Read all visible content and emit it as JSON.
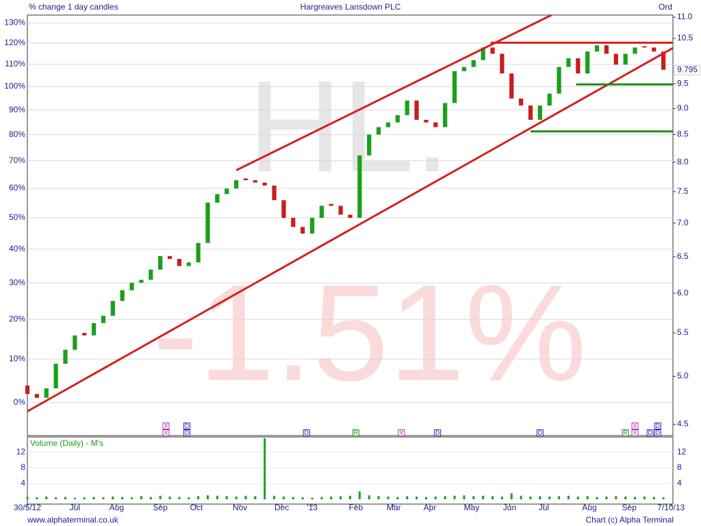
{
  "chart_data": [
    {
      "type": "candlestick",
      "title": "Hargreaves Lansdown PLC",
      "subtitle": "% change 1 day candles",
      "share_class": "Ord",
      "watermark": [
        "HL.",
        "-1.51%"
      ],
      "x": [
        0,
        5,
        10,
        15,
        20,
        25,
        30,
        35,
        40,
        45,
        50,
        55,
        60,
        65,
        70,
        75,
        80,
        85,
        90,
        95,
        100,
        105,
        110,
        115,
        120,
        125,
        130,
        135,
        140,
        145,
        150,
        155,
        160,
        165,
        170,
        175,
        180,
        185,
        190,
        195,
        200,
        205,
        210,
        215,
        220,
        225,
        230,
        235,
        240,
        245,
        250,
        255,
        260,
        265,
        270,
        275,
        280,
        285,
        290,
        295,
        300,
        305,
        310,
        315,
        320,
        325,
        330,
        335
      ],
      "open": [
        4.9,
        4.81,
        4.77,
        4.87,
        5.14,
        5.3,
        5.5,
        5.47,
        5.62,
        5.71,
        5.9,
        6.04,
        6.14,
        6.18,
        6.32,
        6.51,
        6.47,
        6.37,
        6.42,
        6.7,
        7.32,
        7.46,
        7.55,
        7.72,
        7.69,
        7.65,
        7.6,
        7.36,
        7.08,
        6.94,
        6.84,
        7.08,
        7.3,
        7.27,
        7.13,
        7.08,
        8.12,
        8.5,
        8.64,
        8.73,
        8.87,
        9.16,
        8.78,
        8.73,
        8.64,
        9.11,
        9.77,
        9.86,
        10.01,
        10.29,
        10.15,
        9.72,
        9.2,
        9.06,
        8.78,
        9.06,
        9.3,
        9.86,
        10.05,
        9.72,
        10.2,
        10.34,
        10.15,
        9.91,
        10.15,
        10.32,
        10.29,
        10.2
      ],
      "close": [
        4.81,
        4.77,
        4.87,
        5.14,
        5.3,
        5.47,
        5.47,
        5.62,
        5.71,
        5.9,
        6.04,
        6.14,
        6.18,
        6.32,
        6.51,
        6.47,
        6.37,
        6.42,
        6.7,
        7.32,
        7.46,
        7.55,
        7.69,
        7.69,
        7.65,
        7.6,
        7.36,
        7.08,
        6.94,
        6.84,
        7.08,
        7.27,
        7.27,
        7.13,
        7.08,
        8.12,
        8.5,
        8.64,
        8.73,
        8.87,
        9.16,
        8.78,
        8.73,
        8.64,
        9.11,
        9.77,
        9.86,
        10.01,
        10.29,
        10.15,
        9.72,
        9.2,
        9.06,
        8.78,
        9.06,
        9.3,
        9.86,
        10.05,
        9.72,
        10.2,
        10.34,
        10.15,
        9.91,
        10.15,
        10.29,
        10.29,
        10.2,
        9.8
      ],
      "up_color": "#1aa01a",
      "down_color": "#c81e1e",
      "last_price": 9.795,
      "xlim": [
        0,
        340
      ],
      "xticks": [
        {
          "value": 0,
          "label": "30/5/12"
        },
        {
          "value": 25,
          "label": "Jul"
        },
        {
          "value": 47,
          "label": "Aug"
        },
        {
          "value": 70,
          "label": "Sep"
        },
        {
          "value": 89,
          "label": "Oct"
        },
        {
          "value": 112,
          "label": "Nov"
        },
        {
          "value": 134,
          "label": "Dec"
        },
        {
          "value": 150,
          "label": "'13"
        },
        {
          "value": 173,
          "label": "Feb"
        },
        {
          "value": 193,
          "label": "Mar"
        },
        {
          "value": 212,
          "label": "Apr"
        },
        {
          "value": 234,
          "label": "May"
        },
        {
          "value": 254,
          "label": "Jun"
        },
        {
          "value": 272,
          "label": "Jul"
        },
        {
          "value": 296,
          "label": "Aug"
        },
        {
          "value": 317,
          "label": "Sep"
        },
        {
          "value": 339,
          "label": "7/10/13"
        }
      ],
      "y_scale": "log-change",
      "ylim": [
        -7,
        134
      ],
      "yticks": [
        {
          "value": 0,
          "label": "0%"
        },
        {
          "value": 10,
          "label": "10%"
        },
        {
          "value": 20,
          "label": "20%"
        },
        {
          "value": 30,
          "label": "30%"
        },
        {
          "value": 40,
          "label": "40%"
        },
        {
          "value": 50,
          "label": "50%"
        },
        {
          "value": 60,
          "label": "60%"
        },
        {
          "value": 70,
          "label": "70%"
        },
        {
          "value": 80,
          "label": "80%"
        },
        {
          "value": 90,
          "label": "90%"
        },
        {
          "value": 100,
          "label": "100%"
        },
        {
          "value": 110,
          "label": "110%"
        },
        {
          "value": 120,
          "label": "120%"
        },
        {
          "value": 130,
          "label": "130%"
        }
      ],
      "y2_scale": "log",
      "y2lim": [
        4.39,
        11.05
      ],
      "y2ticks": [
        4.5,
        {
          "value": 5,
          "label": "5.0"
        },
        5.5,
        {
          "value": 6,
          "label": "6.0"
        },
        6.5,
        {
          "value": 7,
          "label": "7.0"
        },
        7.5,
        {
          "value": 8,
          "label": "8.0"
        },
        8.5,
        {
          "value": 9,
          "label": "9.0"
        },
        9.5,
        10.5,
        {
          "value": 11,
          "label": "11.0"
        }
      ],
      "grid": true,
      "lines": [
        {
          "color": "#d42020",
          "x": [
            0,
            340
          ],
          "y": [
            4.63,
            10.28
          ]
        },
        {
          "color": "#d42020",
          "x": [
            110,
            276
          ],
          "y": [
            7.86,
            11.05
          ]
        },
        {
          "color": "#d42020",
          "x": [
            244,
            340
          ],
          "y": [
            10.4,
            10.4
          ]
        },
        {
          "color": "#1a8c1a",
          "x": [
            289,
            340
          ],
          "y": [
            9.49,
            9.49
          ]
        },
        {
          "color": "#1a8c1a",
          "x": [
            265,
            340
          ],
          "y": [
            8.56,
            8.56
          ]
        }
      ],
      "event_colors": {
        "X": "#b030b0",
        "D": "#2828b0",
        "R": "#189018"
      },
      "events": [
        {
          "x": 73,
          "label": "X"
        },
        {
          "x": 73,
          "label": "X"
        },
        {
          "x": 84,
          "label": "D"
        },
        {
          "x": 84,
          "label": "D"
        },
        {
          "x": 147,
          "label": "D"
        },
        {
          "x": 173,
          "label": "R"
        },
        {
          "x": 197,
          "label": "X"
        },
        {
          "x": 216,
          "label": "D"
        },
        {
          "x": 270,
          "label": "D"
        },
        {
          "x": 315,
          "label": "R"
        },
        {
          "x": 320,
          "label": "X"
        },
        {
          "x": 320,
          "label": "X"
        },
        {
          "x": 328,
          "label": "D"
        },
        {
          "x": 332,
          "label": "D"
        },
        {
          "x": 332,
          "label": "D"
        }
      ],
      "source": "www.alphaterminal.co.uk",
      "credit": "Chart (c) Alpha Terminal"
    },
    {
      "type": "bar",
      "title": "Volume (Daily) - M's",
      "color": "#1aa01a",
      "x": [
        0,
        5,
        10,
        15,
        20,
        25,
        30,
        35,
        40,
        45,
        50,
        55,
        60,
        65,
        70,
        75,
        80,
        85,
        90,
        95,
        100,
        105,
        110,
        115,
        120,
        125,
        130,
        135,
        140,
        145,
        150,
        155,
        160,
        165,
        170,
        175,
        180,
        185,
        190,
        195,
        200,
        205,
        210,
        215,
        220,
        225,
        230,
        235,
        240,
        245,
        250,
        255,
        260,
        265,
        270,
        275,
        280,
        285,
        290,
        295,
        300,
        305,
        310,
        315,
        320,
        325,
        330,
        335
      ],
      "values": [
        0.6,
        0.5,
        0.7,
        0.5,
        0.6,
        0.4,
        0.5,
        0.6,
        0.5,
        0.7,
        0.6,
        0.5,
        0.8,
        0.6,
        0.9,
        0.7,
        0.6,
        0.5,
        0.8,
        1.0,
        0.9,
        0.8,
        0.7,
        0.9,
        0.8,
        15.5,
        0.9,
        0.7,
        0.6,
        0.5,
        0.4,
        0.6,
        0.7,
        0.8,
        0.9,
        2.0,
        1.0,
        0.8,
        0.7,
        0.6,
        0.8,
        0.7,
        0.6,
        0.7,
        0.8,
        0.9,
        1.0,
        0.8,
        0.9,
        0.8,
        0.7,
        1.5,
        0.9,
        0.7,
        0.8,
        0.7,
        0.8,
        0.9,
        0.7,
        0.8,
        0.6,
        0.7,
        0.8,
        0.7,
        0.6,
        0.7,
        0.6,
        0.5
      ],
      "ylim": [
        0,
        15.5
      ],
      "yticks": [
        4,
        8,
        12
      ]
    }
  ]
}
